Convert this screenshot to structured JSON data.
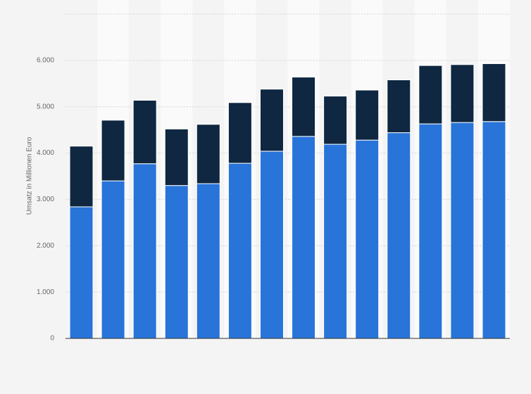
{
  "chart_data": {
    "type": "stacked-bar",
    "y_label": "Umsatz in Millionen Euro",
    "categories": [
      null,
      null,
      null,
      null,
      null,
      null,
      null,
      null,
      null,
      null,
      null,
      null,
      null,
      null
    ],
    "series": [
      {
        "color": "#2874d9",
        "values": [
          2840,
          3400,
          3770,
          3300,
          3340,
          3780,
          4040,
          4360,
          4190,
          4280,
          4440,
          4630,
          4660,
          4680
        ]
      },
      {
        "color": "#0f2740",
        "values": [
          1310,
          1310,
          1370,
          1220,
          1280,
          1310,
          1340,
          1280,
          1040,
          1080,
          1140,
          1260,
          1250,
          1250
        ]
      }
    ],
    "ylim": [
      0,
      7000
    ],
    "yticks": [
      0,
      {
        "value": 1000,
        "label": "1.000"
      },
      {
        "value": 2000,
        "label": "2.000"
      },
      {
        "value": 3000,
        "label": "3.000"
      },
      {
        "value": 4000,
        "label": "4.000"
      },
      {
        "value": 5000,
        "label": "5.000"
      },
      {
        "value": 6000,
        "label": "6.000"
      },
      {
        "value": 7000,
        "label": ""
      }
    ],
    "grid": true
  }
}
